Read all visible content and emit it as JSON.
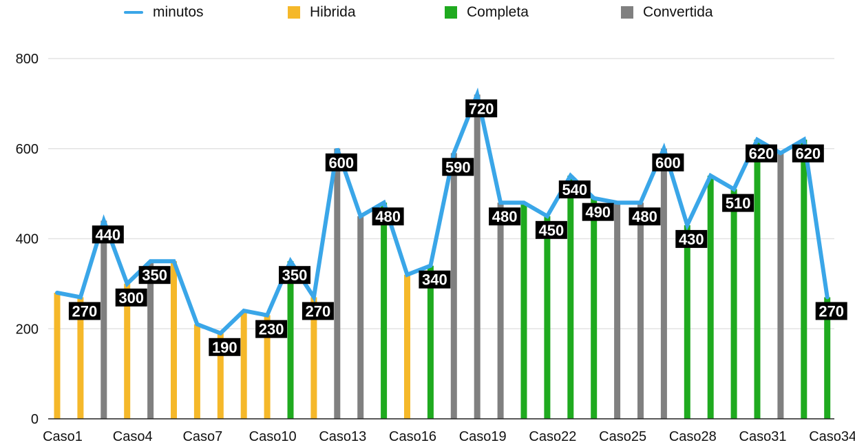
{
  "chart_data": {
    "type": "bar",
    "categories": [
      "Caso1",
      "Caso2",
      "Caso3",
      "Caso4",
      "Caso5",
      "Caso6",
      "Caso7",
      "Caso8",
      "Caso9",
      "Caso10",
      "Caso11",
      "Caso12",
      "Caso13",
      "Caso14",
      "Caso15",
      "Caso16",
      "Caso17",
      "Caso18",
      "Caso19",
      "Caso20",
      "Caso21",
      "Caso22",
      "Caso23",
      "Caso24",
      "Caso25",
      "Caso26",
      "Caso27",
      "Caso28",
      "Caso29",
      "Caso30",
      "Caso31",
      "Caso32",
      "Caso33",
      "Caso34"
    ],
    "tick_labels": [
      "Caso1",
      "Caso4",
      "Caso7",
      "Caso10",
      "Caso13",
      "Caso16",
      "Caso19",
      "Caso22",
      "Caso25",
      "Caso28",
      "Caso31",
      "Caso34"
    ],
    "bar_types": [
      "Hibrida",
      "Hibrida",
      "Convertida",
      "Hibrida",
      "Convertida",
      "Hibrida",
      "Hibrida",
      "Hibrida",
      "Hibrida",
      "Hibrida",
      "Completa",
      "Hibrida",
      "Convertida",
      "Convertida",
      "Completa",
      "Hibrida",
      "Completa",
      "Convertida",
      "Convertida",
      "Convertida",
      "Completa",
      "Completa",
      "Completa",
      "Completa",
      "Convertida",
      "Convertida",
      "Convertida",
      "Completa",
      "Completa",
      "Completa",
      "Completa",
      "Convertida",
      "Completa",
      "Completa"
    ],
    "values": [
      280,
      270,
      440,
      300,
      350,
      350,
      210,
      190,
      240,
      230,
      350,
      270,
      600,
      450,
      480,
      320,
      340,
      590,
      720,
      480,
      480,
      450,
      540,
      490,
      480,
      480,
      600,
      430,
      540,
      510,
      620,
      590,
      620,
      270
    ],
    "series": [
      {
        "name": "minutos",
        "type": "line",
        "values": [
          280,
          270,
          440,
          300,
          350,
          350,
          210,
          190,
          240,
          230,
          350,
          270,
          600,
          450,
          480,
          320,
          340,
          590,
          720,
          480,
          480,
          450,
          540,
          490,
          480,
          480,
          600,
          430,
          540,
          510,
          620,
          590,
          620,
          270
        ]
      },
      {
        "name": "Hibrida",
        "type": "bar"
      },
      {
        "name": "Completa",
        "type": "bar"
      },
      {
        "name": "Convertida",
        "type": "bar"
      }
    ],
    "data_labels": [
      {
        "index": 1,
        "text": "270"
      },
      {
        "index": 2,
        "text": "440"
      },
      {
        "index": 3,
        "text": "300"
      },
      {
        "index": 4,
        "text": "350"
      },
      {
        "index": 7,
        "text": "190"
      },
      {
        "index": 9,
        "text": "230"
      },
      {
        "index": 10,
        "text": "350"
      },
      {
        "index": 11,
        "text": "270"
      },
      {
        "index": 12,
        "text": "600"
      },
      {
        "index": 14,
        "text": "480"
      },
      {
        "index": 16,
        "text": "340"
      },
      {
        "index": 17,
        "text": "590"
      },
      {
        "index": 18,
        "text": "720"
      },
      {
        "index": 19,
        "text": "480"
      },
      {
        "index": 21,
        "text": "450"
      },
      {
        "index": 22,
        "text": "540"
      },
      {
        "index": 23,
        "text": "490"
      },
      {
        "index": 25,
        "text": "480"
      },
      {
        "index": 26,
        "text": "600"
      },
      {
        "index": 27,
        "text": "430"
      },
      {
        "index": 29,
        "text": "510"
      },
      {
        "index": 30,
        "text": "620"
      },
      {
        "index": 32,
        "text": "620"
      },
      {
        "index": 33,
        "text": "270"
      }
    ],
    "yticks": [
      0,
      200,
      400,
      600,
      800
    ],
    "ylim": [
      0,
      800
    ],
    "grid": true,
    "legend_position": "top",
    "colors": {
      "minutos": "#3aa6e8",
      "Hibrida": "#f5b82a",
      "Completa": "#1faa1f",
      "Convertida": "#808080",
      "label_bg": "#000000",
      "label_text": "#ffffff",
      "grid": "#e3e3e3"
    }
  }
}
